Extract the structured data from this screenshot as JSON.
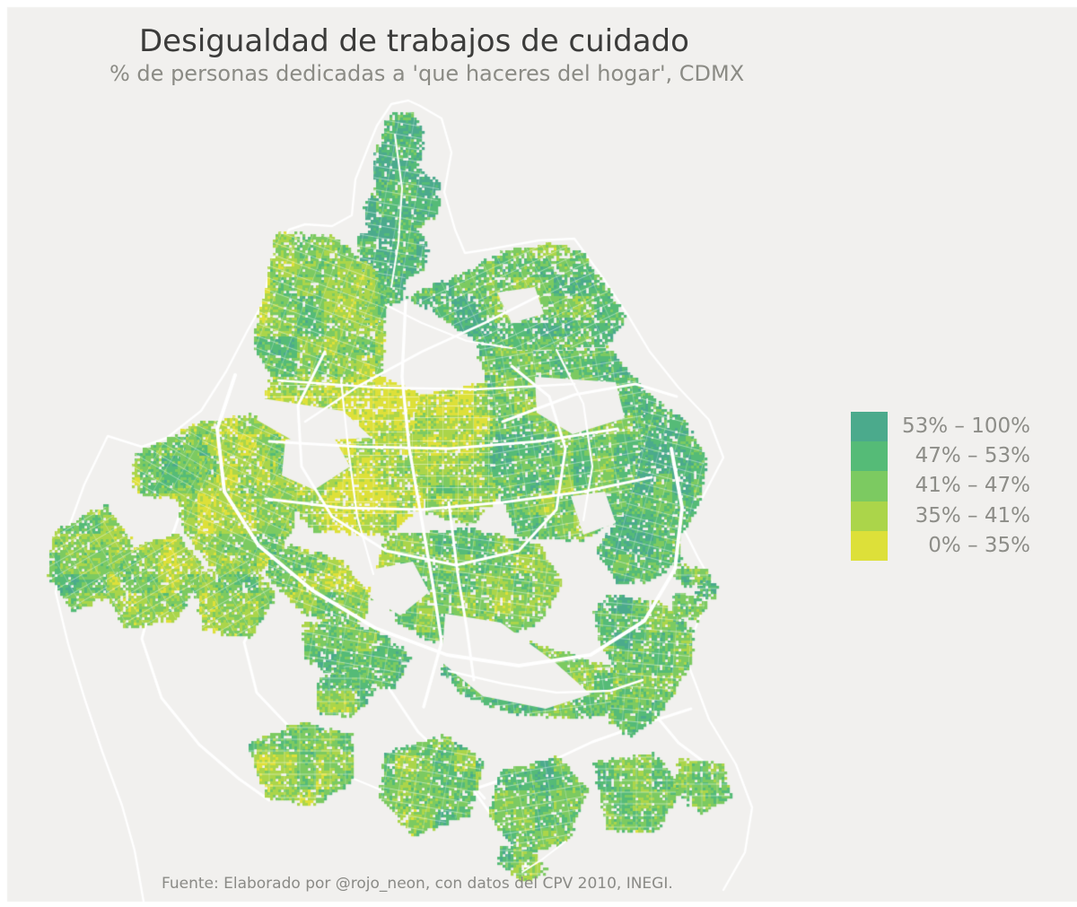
{
  "title": "Desigualdad de trabajos de cuidado",
  "subtitle": "% de personas dedicadas a 'que haceres del hogar', CDMX",
  "footer": "Fuente: Elaborado por @rojo_neon, con datos del CPV 2010, INEGI.",
  "colors": {
    "background": "#f1f0ee",
    "frame_border": "#ffffff",
    "title_text": "#3b3b3a",
    "subtitle_text": "#8b8b85",
    "legend_text": "#8d8d88",
    "footer_text": "#8a8a86",
    "roads": "#ffffff"
  },
  "legend": {
    "items": [
      {
        "label": "53% – 100%",
        "color": "#4baa8c"
      },
      {
        "label": "47% – 53%",
        "color": "#55bb77"
      },
      {
        "label": "41% – 47%",
        "color": "#7cca61"
      },
      {
        "label": "35% – 41%",
        "color": "#abd54a"
      },
      {
        "label": "0% – 35%",
        "color": "#dde039"
      }
    ]
  },
  "chart_data": {
    "type": "choropleth",
    "title": "Desigualdad de trabajos de cuidado",
    "subtitle": "% de personas dedicadas a 'que haceres del hogar', CDMX",
    "region": "CDMX",
    "metric": "% de personas dedicadas a 'que haceres del hogar'",
    "classes": [
      {
        "label": "53% – 100%",
        "min": 53,
        "max": 100,
        "color": "#4baa8c"
      },
      {
        "label": "47% – 53%",
        "min": 47,
        "max": 53,
        "color": "#55bb77"
      },
      {
        "label": "41% – 47%",
        "min": 41,
        "max": 47,
        "color": "#7cca61"
      },
      {
        "label": "35% – 41%",
        "min": 35,
        "max": 41,
        "color": "#abd54a"
      },
      {
        "label": "0% – 35%",
        "min": 0,
        "max": 35,
        "color": "#dde039"
      }
    ],
    "legend_position": "right",
    "source": "CPV 2010, INEGI",
    "author": "@rojo_neon"
  }
}
